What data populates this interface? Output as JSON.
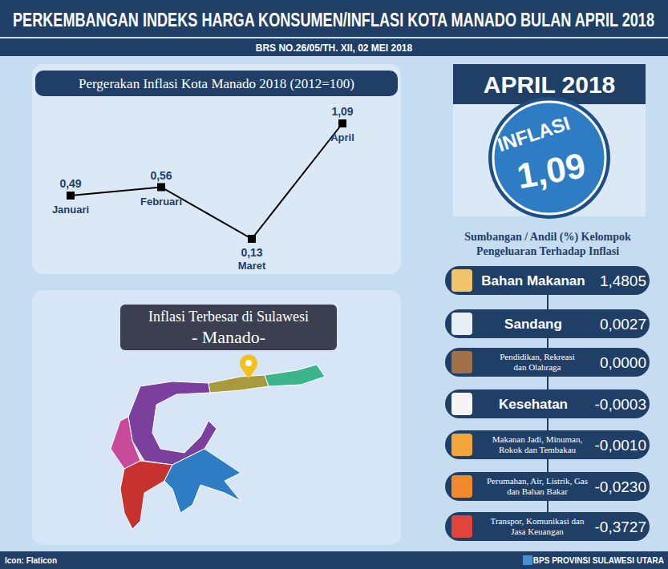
{
  "header": {
    "title": "PERKEMBANGAN INDEKS HARGA KONSUMEN/INFLASI KOTA MANADO BULAN APRIL 2018",
    "subtitle": "BRS NO.26/05/TH. XII, 02 MEI 2018"
  },
  "chart_data": {
    "type": "line",
    "title": "Pergerakan Inflasi Kota Manado 2018 (2012=100)",
    "categories": [
      "Januari",
      "Februari",
      "Maret",
      "April"
    ],
    "values": [
      0.49,
      0.56,
      0.13,
      1.09
    ],
    "value_labels": [
      "0,49",
      "0,56",
      "0,13",
      "1,09"
    ],
    "data_labels": true,
    "tick_labels": "x",
    "color": "#000000",
    "marker": "square"
  },
  "map": {
    "title": "Inflasi Terbesar di Sulawesi",
    "highlight": "- Manado-"
  },
  "summary": {
    "period": "APRIL 2018",
    "label": "INFLASI",
    "value": "1,09"
  },
  "contributions": {
    "title": [
      "Sumbangan / Andil (%) Kelompok",
      "Pengeluaran Terhadap Inflasi"
    ],
    "items": [
      {
        "lines": [
          "Bahan Makanan"
        ],
        "value": "1,4805"
      },
      {
        "lines": [
          "Sandang"
        ],
        "value": "0,0027"
      },
      {
        "lines": [
          "Pendidikan, Rekreasi",
          "dan Olahraga"
        ],
        "value": "0,0000"
      },
      {
        "lines": [
          "Kesehatan"
        ],
        "value": "-0,0003"
      },
      {
        "lines": [
          "Makanan Jadi, Minuman,",
          "Rokok dan Tembakau"
        ],
        "value": "-0,0010"
      },
      {
        "lines": [
          "Perumahan, Air, Listrik, Gas",
          "dan Bahan Bakar"
        ],
        "value": "-0,0230"
      },
      {
        "lines": [
          "Transpor, Komunikasi dan",
          "Jasa Keuangan"
        ],
        "value": "-0,3727"
      }
    ]
  },
  "footer": {
    "left": "Icon: Flaticon",
    "right": "BPS PROVINSI SULAWESI UTARA"
  }
}
